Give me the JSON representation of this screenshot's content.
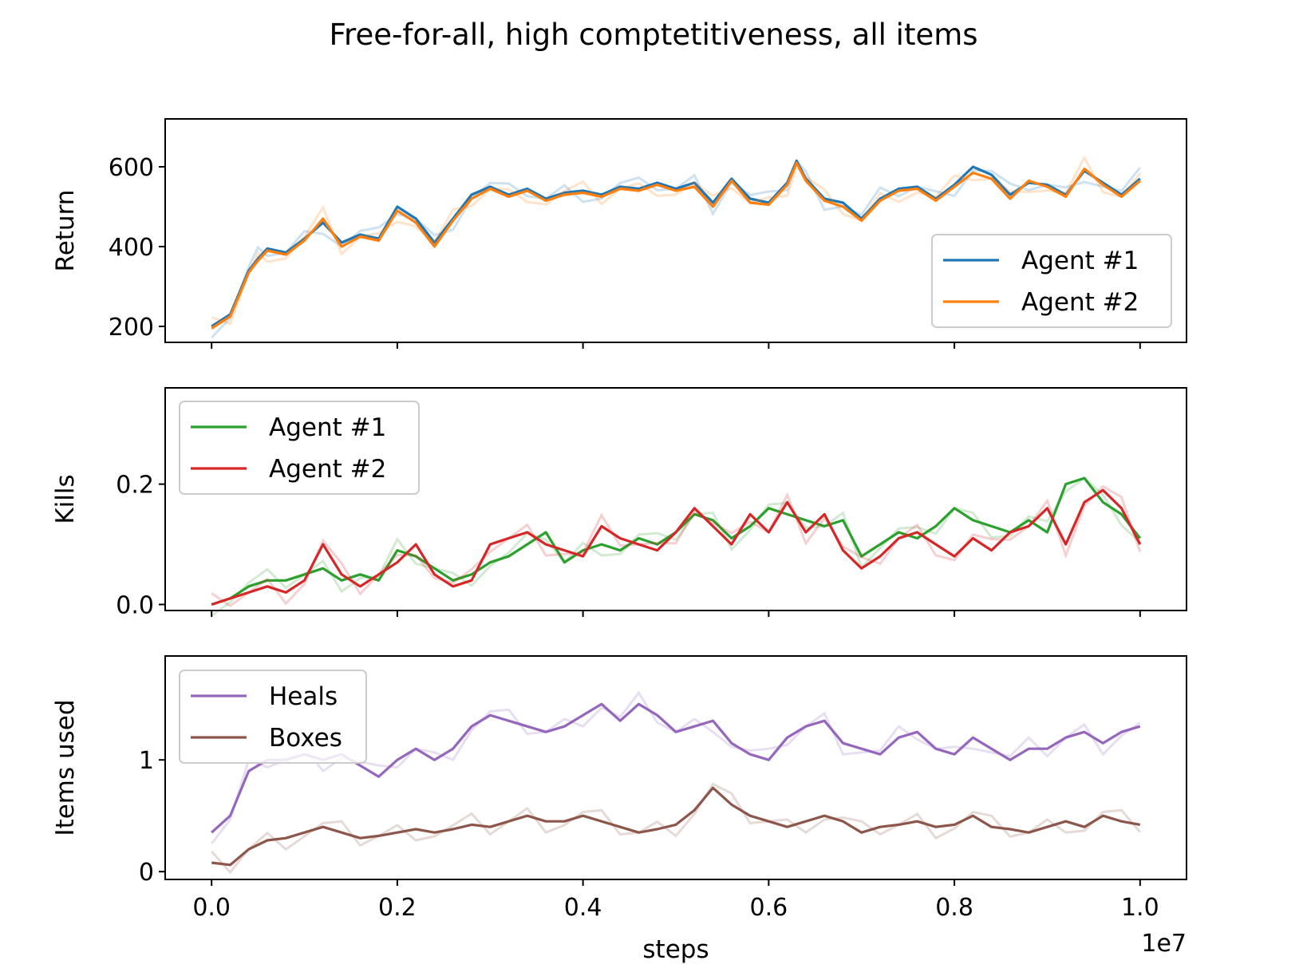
{
  "title": "Free-for-all, high comptetitiveness, all items",
  "colors": {
    "agent1_return": "#1f77b4",
    "agent2_return": "#ff7f0e",
    "agent1_kills": "#2ca02c",
    "agent2_kills": "#d62728",
    "heals": "#9467bd",
    "boxes": "#8c564b"
  },
  "chart_data": [
    {
      "type": "line",
      "xlabel": "",
      "ylabel": "Return",
      "xlim": [
        -0.05,
        1.05
      ],
      "ylim": [
        160,
        720
      ],
      "xticks": [
        0.0,
        0.2,
        0.4,
        0.6,
        0.8,
        1.0
      ],
      "yticks": [
        200,
        400,
        600
      ],
      "ytick_labels": [
        "200",
        "400",
        "600"
      ],
      "legend": "lower-right",
      "series": [
        {
          "name": "Agent #1",
          "color": "#1f77b4",
          "x": [
            0.0,
            0.02,
            0.04,
            0.05,
            0.06,
            0.08,
            0.1,
            0.12,
            0.14,
            0.16,
            0.18,
            0.2,
            0.22,
            0.24,
            0.26,
            0.28,
            0.3,
            0.32,
            0.34,
            0.36,
            0.38,
            0.4,
            0.42,
            0.44,
            0.46,
            0.48,
            0.5,
            0.52,
            0.54,
            0.56,
            0.58,
            0.6,
            0.62,
            0.63,
            0.64,
            0.66,
            0.68,
            0.7,
            0.72,
            0.74,
            0.76,
            0.78,
            0.8,
            0.82,
            0.84,
            0.86,
            0.88,
            0.9,
            0.92,
            0.94,
            0.96,
            0.98,
            1.0
          ],
          "y": [
            200,
            230,
            340,
            370,
            395,
            385,
            420,
            460,
            410,
            430,
            420,
            500,
            470,
            410,
            470,
            530,
            550,
            530,
            545,
            520,
            535,
            540,
            530,
            550,
            545,
            560,
            545,
            560,
            510,
            570,
            520,
            510,
            560,
            615,
            570,
            520,
            510,
            470,
            520,
            545,
            550,
            520,
            555,
            600,
            580,
            530,
            560,
            555,
            530,
            590,
            560,
            530,
            570
          ]
        },
        {
          "name": "Agent #2",
          "color": "#ff7f0e",
          "x": [
            0.0,
            0.02,
            0.04,
            0.05,
            0.06,
            0.08,
            0.1,
            0.12,
            0.14,
            0.16,
            0.18,
            0.2,
            0.22,
            0.24,
            0.26,
            0.28,
            0.3,
            0.32,
            0.34,
            0.36,
            0.38,
            0.4,
            0.42,
            0.44,
            0.46,
            0.48,
            0.5,
            0.52,
            0.54,
            0.56,
            0.58,
            0.6,
            0.62,
            0.63,
            0.64,
            0.66,
            0.68,
            0.7,
            0.72,
            0.74,
            0.76,
            0.78,
            0.8,
            0.82,
            0.84,
            0.86,
            0.88,
            0.9,
            0.92,
            0.94,
            0.96,
            0.98,
            1.0
          ],
          "y": [
            195,
            225,
            335,
            365,
            390,
            380,
            415,
            470,
            400,
            425,
            415,
            490,
            460,
            400,
            465,
            520,
            545,
            525,
            540,
            515,
            530,
            535,
            525,
            545,
            540,
            555,
            540,
            550,
            500,
            565,
            510,
            505,
            555,
            610,
            565,
            515,
            500,
            465,
            515,
            540,
            545,
            515,
            550,
            585,
            570,
            520,
            565,
            550,
            525,
            595,
            555,
            525,
            565
          ]
        }
      ]
    },
    {
      "type": "line",
      "xlabel": "",
      "ylabel": "Kills",
      "xlim": [
        -0.05,
        1.05
      ],
      "ylim": [
        -0.01,
        0.36
      ],
      "xticks": [
        0.0,
        0.2,
        0.4,
        0.6,
        0.8,
        1.0
      ],
      "yticks": [
        0.0,
        0.2
      ],
      "ytick_labels": [
        "0.0",
        "0.2"
      ],
      "legend": "top-left",
      "series": [
        {
          "name": "Agent #1",
          "color": "#2ca02c",
          "x": [
            0.0,
            0.02,
            0.04,
            0.06,
            0.08,
            0.1,
            0.12,
            0.14,
            0.16,
            0.18,
            0.2,
            0.22,
            0.24,
            0.26,
            0.28,
            0.3,
            0.32,
            0.34,
            0.36,
            0.38,
            0.4,
            0.42,
            0.44,
            0.46,
            0.48,
            0.5,
            0.52,
            0.54,
            0.56,
            0.58,
            0.6,
            0.62,
            0.64,
            0.66,
            0.68,
            0.7,
            0.72,
            0.74,
            0.76,
            0.78,
            0.8,
            0.82,
            0.84,
            0.86,
            0.88,
            0.9,
            0.92,
            0.94,
            0.96,
            0.98,
            1.0
          ],
          "y": [
            0.0,
            0.01,
            0.03,
            0.04,
            0.04,
            0.05,
            0.06,
            0.04,
            0.05,
            0.04,
            0.09,
            0.08,
            0.06,
            0.04,
            0.05,
            0.07,
            0.08,
            0.1,
            0.12,
            0.07,
            0.09,
            0.1,
            0.09,
            0.11,
            0.1,
            0.12,
            0.15,
            0.14,
            0.11,
            0.13,
            0.16,
            0.15,
            0.14,
            0.13,
            0.14,
            0.08,
            0.1,
            0.12,
            0.11,
            0.13,
            0.16,
            0.14,
            0.13,
            0.12,
            0.14,
            0.12,
            0.2,
            0.21,
            0.17,
            0.15,
            0.11
          ]
        },
        {
          "name": "Agent #2",
          "color": "#d62728",
          "x": [
            0.0,
            0.02,
            0.04,
            0.06,
            0.08,
            0.1,
            0.12,
            0.14,
            0.16,
            0.18,
            0.2,
            0.22,
            0.24,
            0.26,
            0.28,
            0.3,
            0.32,
            0.34,
            0.36,
            0.38,
            0.4,
            0.42,
            0.44,
            0.46,
            0.48,
            0.5,
            0.52,
            0.54,
            0.56,
            0.58,
            0.6,
            0.62,
            0.64,
            0.66,
            0.68,
            0.7,
            0.72,
            0.74,
            0.76,
            0.78,
            0.8,
            0.82,
            0.84,
            0.86,
            0.88,
            0.9,
            0.92,
            0.94,
            0.96,
            0.98,
            1.0
          ],
          "y": [
            0.0,
            0.01,
            0.02,
            0.03,
            0.02,
            0.04,
            0.1,
            0.05,
            0.03,
            0.05,
            0.07,
            0.1,
            0.05,
            0.03,
            0.04,
            0.1,
            0.11,
            0.12,
            0.1,
            0.09,
            0.08,
            0.13,
            0.11,
            0.1,
            0.09,
            0.12,
            0.16,
            0.13,
            0.1,
            0.15,
            0.12,
            0.17,
            0.12,
            0.15,
            0.09,
            0.06,
            0.08,
            0.11,
            0.12,
            0.1,
            0.08,
            0.11,
            0.09,
            0.12,
            0.13,
            0.16,
            0.1,
            0.17,
            0.19,
            0.16,
            0.1
          ]
        }
      ]
    },
    {
      "type": "line",
      "xlabel": "steps",
      "ylabel": "Items used",
      "x_multiplier": "1e7",
      "xlim": [
        -0.05,
        1.05
      ],
      "ylim": [
        -0.07,
        1.93
      ],
      "xticks": [
        0.0,
        0.2,
        0.4,
        0.6,
        0.8,
        1.0
      ],
      "xtick_labels": [
        "0.0",
        "0.2",
        "0.4",
        "0.6",
        "0.8",
        "1.0"
      ],
      "yticks": [
        0,
        1
      ],
      "ytick_labels": [
        "0",
        "1"
      ],
      "legend": "top-left",
      "series": [
        {
          "name": "Heals",
          "color": "#9467bd",
          "x": [
            0.0,
            0.02,
            0.03,
            0.04,
            0.06,
            0.08,
            0.1,
            0.12,
            0.14,
            0.16,
            0.18,
            0.2,
            0.22,
            0.24,
            0.26,
            0.28,
            0.3,
            0.32,
            0.34,
            0.36,
            0.38,
            0.4,
            0.42,
            0.44,
            0.46,
            0.48,
            0.5,
            0.52,
            0.54,
            0.56,
            0.58,
            0.6,
            0.62,
            0.64,
            0.66,
            0.68,
            0.7,
            0.72,
            0.74,
            0.76,
            0.78,
            0.8,
            0.82,
            0.84,
            0.86,
            0.88,
            0.9,
            0.92,
            0.94,
            0.96,
            0.98,
            1.0
          ],
          "y": [
            0.35,
            0.5,
            0.7,
            0.9,
            1.0,
            1.0,
            1.05,
            1.0,
            1.05,
            0.95,
            0.85,
            1.0,
            1.1,
            1.0,
            1.1,
            1.3,
            1.4,
            1.35,
            1.3,
            1.25,
            1.3,
            1.4,
            1.5,
            1.35,
            1.5,
            1.4,
            1.25,
            1.3,
            1.35,
            1.15,
            1.05,
            1.0,
            1.2,
            1.3,
            1.35,
            1.15,
            1.1,
            1.05,
            1.2,
            1.25,
            1.1,
            1.05,
            1.2,
            1.1,
            1.0,
            1.1,
            1.1,
            1.2,
            1.25,
            1.15,
            1.25,
            1.3
          ]
        },
        {
          "name": "Boxes",
          "color": "#8c564b",
          "x": [
            0.0,
            0.02,
            0.04,
            0.06,
            0.08,
            0.1,
            0.12,
            0.14,
            0.16,
            0.18,
            0.2,
            0.22,
            0.24,
            0.26,
            0.28,
            0.3,
            0.32,
            0.34,
            0.36,
            0.38,
            0.4,
            0.42,
            0.44,
            0.46,
            0.48,
            0.5,
            0.52,
            0.54,
            0.56,
            0.58,
            0.6,
            0.62,
            0.64,
            0.66,
            0.68,
            0.7,
            0.72,
            0.74,
            0.76,
            0.78,
            0.8,
            0.82,
            0.84,
            0.86,
            0.88,
            0.9,
            0.92,
            0.94,
            0.96,
            0.98,
            1.0
          ],
          "y": [
            0.08,
            0.06,
            0.2,
            0.28,
            0.3,
            0.35,
            0.4,
            0.35,
            0.3,
            0.32,
            0.35,
            0.38,
            0.35,
            0.38,
            0.42,
            0.4,
            0.45,
            0.5,
            0.45,
            0.45,
            0.5,
            0.45,
            0.4,
            0.35,
            0.38,
            0.42,
            0.55,
            0.75,
            0.6,
            0.5,
            0.45,
            0.4,
            0.45,
            0.5,
            0.45,
            0.35,
            0.4,
            0.42,
            0.45,
            0.4,
            0.42,
            0.5,
            0.4,
            0.38,
            0.35,
            0.4,
            0.45,
            0.4,
            0.5,
            0.45,
            0.42
          ]
        }
      ]
    }
  ]
}
